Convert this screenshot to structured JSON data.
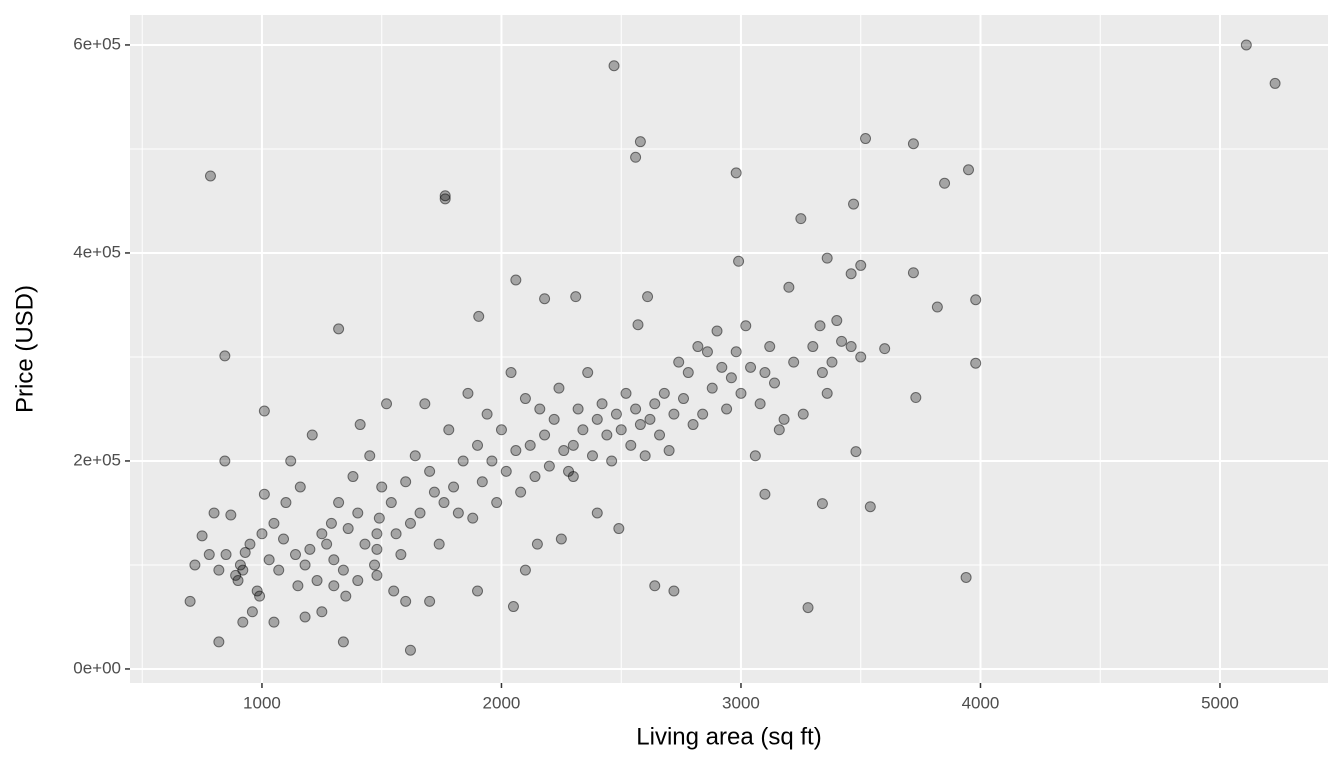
{
  "chart_data": {
    "type": "scatter",
    "x_label": "Living area (sq ft)",
    "y_label": "Price (USD)",
    "xlim": [
      449,
      5451
    ],
    "ylim": [
      -13500,
      628800
    ],
    "xticks": [
      1000,
      2000,
      3000,
      4000,
      5000
    ],
    "yticks": [
      {
        "value": 0,
        "label": "0e+00"
      },
      {
        "value": 200000,
        "label": "2e+05"
      },
      {
        "value": 400000,
        "label": "4e+05"
      },
      {
        "value": 600000,
        "label": "6e+05"
      }
    ],
    "grid": true,
    "color": "#000000",
    "opacity": 0.3,
    "x": [
      5110,
      5230,
      2470,
      785,
      1765,
      1765,
      2580,
      2560,
      2980,
      3520,
      3720,
      3850,
      3950,
      3470,
      3250,
      2990,
      3360,
      3720,
      3460,
      3500,
      3980,
      3820,
      2060,
      2310,
      2180,
      1320,
      845,
      1905,
      3980,
      3730,
      3940,
      3280,
      2640,
      2720,
      1620,
      820,
      1340,
      845,
      1010,
      3540,
      3340,
      3100,
      3480,
      3600,
      3200,
      3330,
      3400,
      2610,
      2570,
      700,
      720,
      750,
      780,
      800,
      820,
      850,
      870,
      890,
      900,
      910,
      920,
      930,
      950,
      960,
      980,
      1000,
      1010,
      1030,
      1050,
      1070,
      1090,
      1100,
      1120,
      1140,
      1160,
      1180,
      1200,
      1210,
      1230,
      1250,
      1270,
      1290,
      1300,
      1320,
      1340,
      1360,
      1380,
      1400,
      1410,
      1430,
      1450,
      1470,
      1480,
      1480,
      1480,
      1490,
      1500,
      1520,
      1540,
      1560,
      1580,
      1600,
      1620,
      1640,
      1660,
      1680,
      1700,
      1720,
      1740,
      1760,
      1780,
      1800,
      1820,
      1840,
      1860,
      1880,
      1900,
      1920,
      1940,
      1960,
      1980,
      2000,
      2020,
      2040,
      2060,
      2080,
      2100,
      2120,
      2140,
      2160,
      2180,
      2200,
      2220,
      2240,
      2260,
      2280,
      2300,
      2300,
      2320,
      2340,
      2360,
      2380,
      2400,
      2420,
      2440,
      2460,
      2480,
      2500,
      2520,
      2540,
      2560,
      2580,
      2600,
      2620,
      2640,
      2660,
      2680,
      2700,
      2720,
      2740,
      2760,
      2780,
      2800,
      2820,
      2840,
      2860,
      2880,
      2900,
      2920,
      2940,
      2960,
      2980,
      3000,
      3020,
      3040,
      3060,
      3080,
      3100,
      3120,
      3140,
      3160,
      3180,
      3220,
      3260,
      3300,
      3340,
      3360,
      3380,
      3420,
      3460,
      3500,
      1050,
      1180,
      1250,
      1350,
      1400,
      1550,
      1600,
      1700,
      1900,
      2050,
      2100,
      2150,
      2250,
      2400,
      2490,
      1150,
      1300,
      920,
      990
    ],
    "values": [
      600000,
      563000,
      580000,
      474000,
      455000,
      452000,
      507000,
      492000,
      477000,
      510000,
      505000,
      467000,
      480000,
      447000,
      433000,
      392000,
      395000,
      381000,
      380000,
      388000,
      355000,
      348000,
      374000,
      358000,
      356000,
      327000,
      301000,
      339000,
      294000,
      261000,
      88000,
      59000,
      80000,
      75000,
      18000,
      26000,
      26000,
      200000,
      248000,
      156000,
      159000,
      168000,
      209000,
      308000,
      367000,
      330000,
      335000,
      358000,
      331000,
      65000,
      100000,
      128000,
      110000,
      150000,
      95000,
      110000,
      148000,
      90000,
      85000,
      100000,
      95000,
      112000,
      120000,
      55000,
      75000,
      130000,
      168000,
      105000,
      140000,
      95000,
      125000,
      160000,
      200000,
      110000,
      175000,
      100000,
      115000,
      225000,
      85000,
      130000,
      120000,
      140000,
      105000,
      160000,
      95000,
      135000,
      185000,
      150000,
      235000,
      120000,
      205000,
      100000,
      130000,
      115000,
      90000,
      145000,
      175000,
      255000,
      160000,
      130000,
      110000,
      180000,
      140000,
      205000,
      150000,
      255000,
      190000,
      170000,
      120000,
      160000,
      230000,
      175000,
      150000,
      200000,
      265000,
      145000,
      215000,
      180000,
      245000,
      200000,
      160000,
      230000,
      190000,
      285000,
      210000,
      170000,
      260000,
      215000,
      185000,
      250000,
      225000,
      195000,
      240000,
      270000,
      210000,
      190000,
      185000,
      215000,
      250000,
      230000,
      285000,
      205000,
      240000,
      255000,
      225000,
      200000,
      245000,
      230000,
      265000,
      215000,
      250000,
      235000,
      205000,
      240000,
      255000,
      225000,
      265000,
      210000,
      245000,
      295000,
      260000,
      285000,
      235000,
      310000,
      245000,
      305000,
      270000,
      325000,
      290000,
      250000,
      280000,
      305000,
      265000,
      330000,
      290000,
      205000,
      255000,
      285000,
      310000,
      275000,
      230000,
      240000,
      295000,
      245000,
      310000,
      285000,
      265000,
      295000,
      315000,
      310000,
      300000,
      45000,
      50000,
      55000,
      70000,
      85000,
      75000,
      65000,
      65000,
      75000,
      60000,
      95000,
      120000,
      125000,
      150000,
      135000,
      80000,
      80000,
      45000,
      70000
    ]
  }
}
